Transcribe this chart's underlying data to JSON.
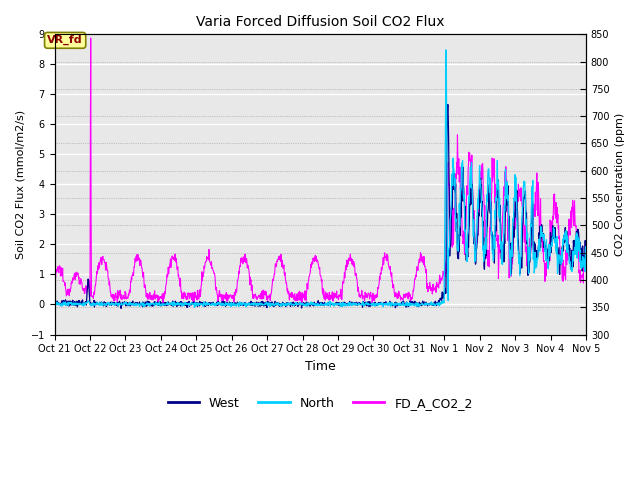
{
  "title": "Varia Forced Diffusion Soil CO2 Flux",
  "xlabel": "Time",
  "ylabel_left": "Soil CO2 Flux (mmol/m2/s)",
  "ylabel_right": "CO2 Concentration (ppm)",
  "ylim_left": [
    -1.0,
    9.0
  ],
  "ylim_right": [
    300,
    850
  ],
  "yticks_left": [
    -1.0,
    0.0,
    1.0,
    2.0,
    3.0,
    4.0,
    5.0,
    6.0,
    7.0,
    8.0,
    9.0
  ],
  "yticks_right": [
    300,
    350,
    400,
    450,
    500,
    550,
    600,
    650,
    700,
    750,
    800,
    850
  ],
  "xtick_labels": [
    "Oct 21",
    "Oct 22",
    "Oct 23",
    "Oct 24",
    "Oct 25",
    "Oct 26",
    "Oct 27",
    "Oct 28",
    "Oct 29",
    "Oct 30",
    "Oct 31",
    "Nov 1",
    "Nov 2",
    "Nov 3",
    "Nov 4",
    "Nov 5"
  ],
  "color_west": "#00008B",
  "color_north": "#00CFFF",
  "color_fd": "#FF00FF",
  "annotation_text": "VR_fd",
  "annotation_color": "#8B0000",
  "annotation_bg": "#FFFF99",
  "bg_color": "#E8E8E8",
  "legend_labels": [
    "West",
    "North",
    "FD_A_CO2_2"
  ],
  "legend_colors": [
    "#00008B",
    "#00CFFF",
    "#FF00FF"
  ],
  "n_days": 15,
  "samples_per_day": 96
}
